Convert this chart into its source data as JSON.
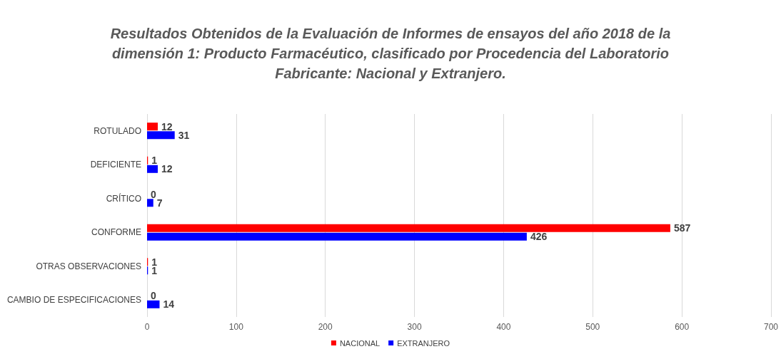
{
  "chart_data": {
    "type": "bar",
    "orientation": "horizontal",
    "title": "Resultados Obtenidos de la Evaluación de Informes de ensayos del año 2018 de la\ndimensión 1: Producto Farmacéutico, clasificado por Procedencia del Laboratorio\nFabricante: Nacional y Extranjero.",
    "categories": [
      "ROTULADO",
      "DEFICIENTE",
      "CRÍTICO",
      "CONFORME",
      "OTRAS OBSERVACIONES",
      "CAMBIO DE ESPECIFICACIONES"
    ],
    "series": [
      {
        "name": "NACIONAL",
        "color": "#ff0000",
        "values": [
          12,
          1,
          0,
          587,
          1,
          0
        ]
      },
      {
        "name": "EXTRANJERO",
        "color": "#0000ff",
        "values": [
          31,
          12,
          7,
          426,
          1,
          14
        ]
      }
    ],
    "xlim": [
      0,
      700
    ],
    "xticks": [
      0,
      100,
      200,
      300,
      400,
      500,
      600,
      700
    ],
    "grid": "x",
    "legend": "bottom",
    "data_labels": true
  }
}
